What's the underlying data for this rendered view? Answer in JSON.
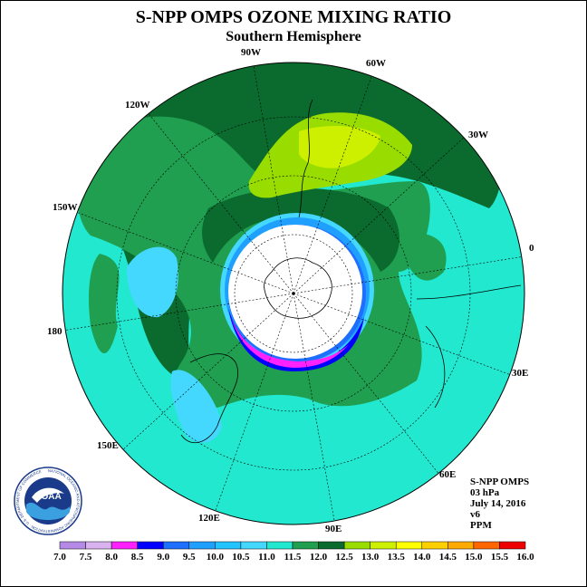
{
  "title": "S-NPP OMPS OZONE MIXING RATIO",
  "subtitle": "Southern Hemisphere",
  "longitude_labels": [
    "90W",
    "60W",
    "30W",
    "0",
    "30E",
    "60E",
    "90E",
    "120E",
    "150E",
    "180",
    "150W",
    "120W"
  ],
  "info": {
    "instrument": "S-NPP OMPS",
    "level": "03 hPa",
    "date": "July 14, 2016",
    "version": "v6",
    "units": "PPM"
  },
  "logo": {
    "text": "NOAA",
    "ring_text": "NATIONAL OCEANIC AND ATMOSPHERIC ADMINISTRATION · U.S. DEPARTMENT OF COMMERCE"
  },
  "colorbar": {
    "labels": [
      "7.0",
      "7.5",
      "8.0",
      "8.5",
      "9.0",
      "9.5",
      "10.0",
      "10.5",
      "11.0",
      "11.5",
      "12.0",
      "12.5",
      "13.0",
      "13.5",
      "14.0",
      "14.5",
      "15.0",
      "15.5",
      "16.0"
    ],
    "colors": [
      "#b58ae6",
      "#d9b3f0",
      "#ff22ff",
      "#0000ff",
      "#1f6fff",
      "#1fa0ff",
      "#22c4ff",
      "#44d8ff",
      "#22e8d0",
      "#1f9f4f",
      "#0b6b2f",
      "#99dd00",
      "#ccf000",
      "#ffff00",
      "#ffd000",
      "#ffaa00",
      "#ff6600",
      "#ee0000",
      "#8b4a3a"
    ]
  },
  "colors": {
    "ocean_bg": "#22e8d0",
    "dark_green": "#0b6b2f",
    "mid_green": "#1f9f4f",
    "lime": "#99dd00",
    "yellow_green": "#ccf000",
    "light_blue": "#22c4ff",
    "blue": "#0000ff",
    "magenta": "#ff22ff",
    "pole_white": "#ffffff"
  }
}
